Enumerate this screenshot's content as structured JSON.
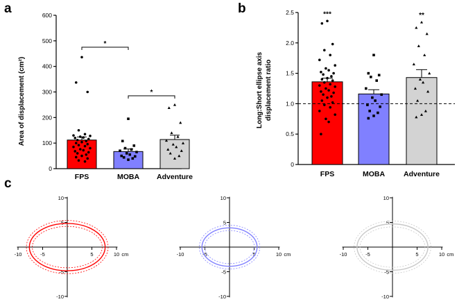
{
  "panels": {
    "a": {
      "letter": "a",
      "type": "bar",
      "categories": [
        "FPS",
        "MOBA",
        "Adventure"
      ],
      "ylabel": "Area of displacement (cm²)",
      "ylim": [
        0,
        600
      ],
      "yticks": [
        0,
        100,
        200,
        300,
        400,
        500,
        600
      ],
      "colors": [
        "#ff0000",
        "#8080ff",
        "#d3d3d3"
      ],
      "means": [
        112,
        67,
        114
      ],
      "sems": [
        12,
        10,
        17
      ],
      "points": [
        [
          436,
          337,
          300,
          150,
          135,
          130,
          128,
          125,
          122,
          120,
          116,
          112,
          108,
          104,
          100,
          96,
          92,
          88,
          85,
          80,
          76,
          72,
          68,
          64,
          60,
          55,
          50,
          45,
          40,
          32,
          28
        ],
        [
          195,
          108,
          90,
          80,
          75,
          70,
          65,
          60,
          55,
          50,
          48,
          44,
          40,
          35
        ],
        [
          250,
          238,
          180,
          140,
          125,
          110,
          100,
          95,
          85,
          75,
          70,
          60,
          50,
          40
        ]
      ],
      "markers": [
        "circle",
        "square",
        "triangle"
      ],
      "significance": [
        {
          "from": 0,
          "to": 1,
          "label": "*",
          "y": 475
        },
        {
          "from": 1,
          "to": 2,
          "label": "*",
          "y": 285
        }
      ]
    },
    "b": {
      "letter": "b",
      "type": "bar",
      "categories": [
        "FPS",
        "MOBA",
        "Adventure"
      ],
      "ylabel_lines": [
        "Long:Short ellipse axis",
        "displacement ratio"
      ],
      "ylim": [
        0,
        2.5
      ],
      "yticks": [
        "0",
        "0.5",
        "1.0",
        "1.5",
        "2.0",
        "2.5"
      ],
      "colors": [
        "#ff0000",
        "#8080ff",
        "#d3d3d3"
      ],
      "means": [
        1.36,
        1.16,
        1.43
      ],
      "sems": [
        0.06,
        0.07,
        0.13
      ],
      "reference_line": 1.0,
      "bar_labels": [
        "***",
        "",
        "**"
      ],
      "points": [
        [
          2.36,
          2.32,
          1.98,
          1.88,
          1.8,
          1.72,
          1.63,
          1.58,
          1.55,
          1.52,
          1.5,
          1.48,
          1.45,
          1.42,
          1.4,
          1.38,
          1.35,
          1.32,
          1.3,
          1.28,
          1.25,
          1.22,
          1.2,
          1.18,
          1.15,
          1.12,
          1.1,
          1.05,
          1.02,
          0.98,
          0.94,
          0.88,
          0.82,
          0.75,
          0.7,
          0.5
        ],
        [
          1.8,
          1.5,
          1.47,
          1.44,
          1.38,
          1.25,
          1.15,
          1.1,
          1.05,
          0.98,
          0.95,
          0.88,
          0.85,
          0.8,
          0.76
        ],
        [
          2.34,
          2.25,
          2.15,
          1.95,
          1.8,
          1.65,
          1.5,
          1.4,
          1.35,
          1.25,
          1.2,
          1.05,
          0.88,
          0.82,
          0.78
        ]
      ],
      "markers": [
        "circle",
        "square",
        "triangle"
      ]
    },
    "c": {
      "letter": "c",
      "type": "ellipse",
      "unit": "cm",
      "axis_labels_x": [
        "-10",
        "-5",
        "5",
        "10"
      ],
      "axis_labels_y": [
        "10",
        "5",
        "-5",
        "-10"
      ],
      "plots": [
        {
          "group": "FPS",
          "color": "#ff0000",
          "semi_major": 7.7,
          "semi_minor": 4.8,
          "band": 0.6
        },
        {
          "group": "MOBA",
          "color": "#8080ff",
          "semi_major": 5.6,
          "semi_minor": 3.9,
          "band": 0.55
        },
        {
          "group": "Adventure",
          "color": "#c8c8c8",
          "semi_major": 7.2,
          "semi_minor": 4.7,
          "band": 0.6
        }
      ]
    }
  }
}
